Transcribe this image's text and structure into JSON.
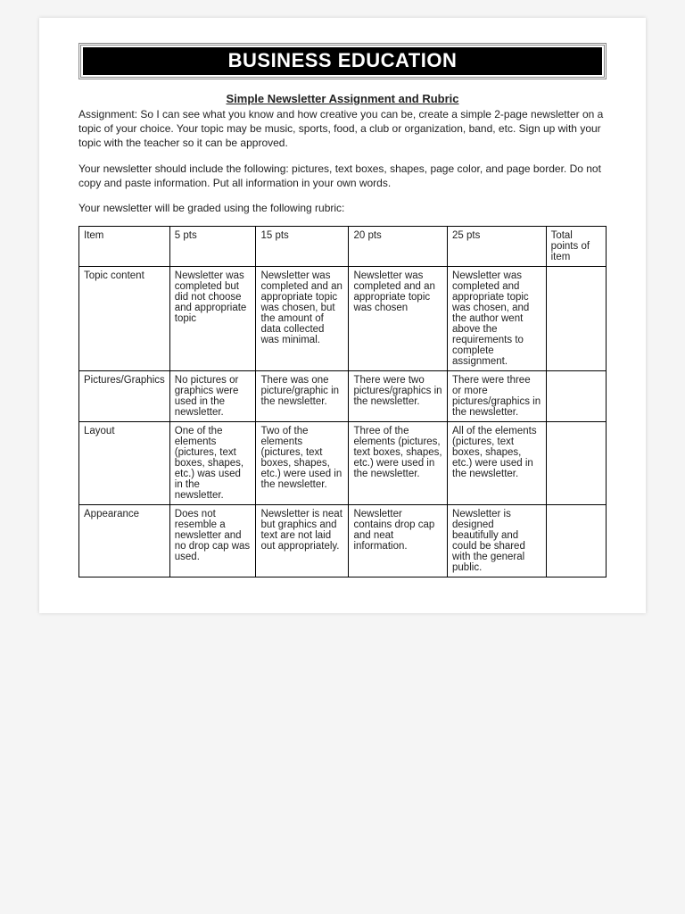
{
  "header": {
    "banner": "BUSINESS EDUCATION"
  },
  "subtitle": "Simple Newsletter Assignment and Rubric",
  "paragraphs": {
    "p1": "Assignment: So I can see what you know and how creative you can be, create a simple 2-page newsletter on a topic of your choice. Your topic may be music, sports, food, a club or organization, band, etc. Sign up with your topic with the teacher so it can be approved.",
    "p2": "Your newsletter should include the following: pictures, text boxes, shapes, page color, and page border. Do not copy and paste information. Put all information in your own words.",
    "p3": "Your newsletter will be graded using the following rubric:"
  },
  "rubric": {
    "columns": [
      "Item",
      "5 pts",
      "15 pts",
      "20 pts",
      "25 pts",
      "Total points of item"
    ],
    "rows": [
      {
        "item": "Topic content",
        "c5": "Newsletter was completed but did not choose and appropriate topic",
        "c15": "Newsletter was completed and an appropriate topic was chosen, but the amount of data collected was minimal.",
        "c20": "Newsletter was completed and an appropriate topic was chosen",
        "c25": "Newsletter was completed and appropriate topic was chosen, and the author went above the requirements to complete assignment.",
        "total": ""
      },
      {
        "item": "Pictures/Graphics",
        "c5": "No pictures or graphics were used in the newsletter.",
        "c15": "There was one picture/graphic in the newsletter.",
        "c20": "There were two pictures/graphics in the newsletter.",
        "c25": "There were three or more pictures/graphics in the newsletter.",
        "total": ""
      },
      {
        "item": "Layout",
        "c5": "One of the elements (pictures, text boxes, shapes, etc.) was used in the newsletter.",
        "c15": "Two of the elements (pictures, text boxes, shapes, etc.) were used in the newsletter.",
        "c20": "Three of the elements (pictures, text boxes, shapes, etc.) were used in the newsletter.",
        "c25": "All of the elements (pictures, text boxes, shapes, etc.) were used in the newsletter.",
        "total": ""
      },
      {
        "item": "Appearance",
        "c5": "Does not resemble a newsletter and no drop cap was used.",
        "c15": "Newsletter is neat but graphics and text are not laid out appropriately.",
        "c20": "Newsletter contains drop cap and neat information.",
        "c25": "Newsletter is designed beautifully and could be shared with the general public.",
        "total": ""
      }
    ]
  }
}
